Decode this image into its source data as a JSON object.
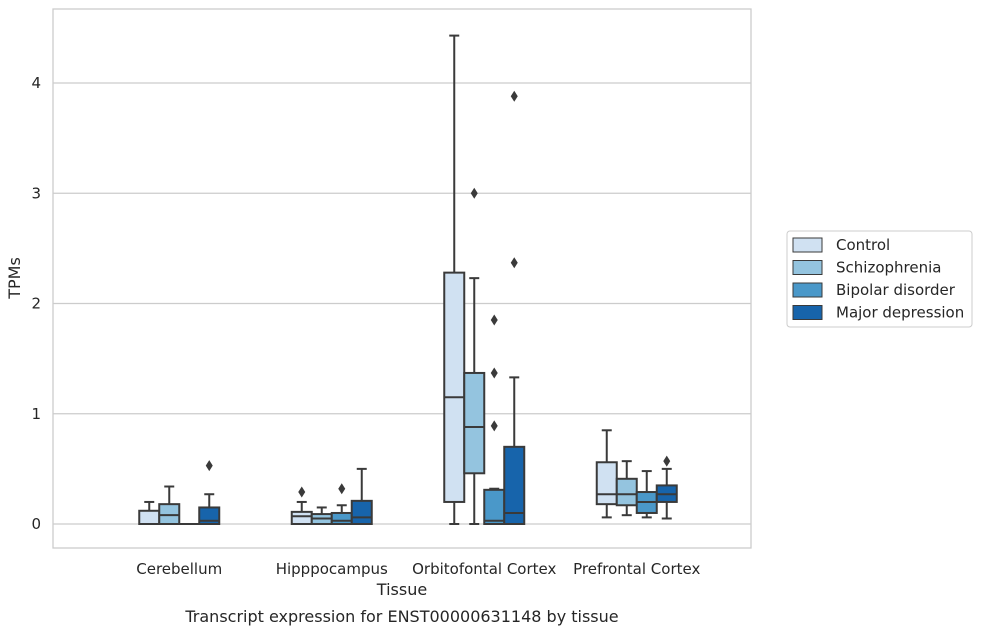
{
  "chart_data": {
    "type": "boxplot",
    "caption": "Transcript expression for ENST00000631148 by tissue",
    "xlabel": "Tissue",
    "ylabel": "TPMs",
    "ylim": [
      -0.22,
      4.7
    ],
    "yticks": [
      0,
      1,
      2,
      3,
      4
    ],
    "grid": true,
    "legend_position": "right",
    "categories": [
      "Cerebellum",
      "Hipppocampus",
      "Orbitofontal Cortex",
      "Prefrontal Cortex"
    ],
    "series": [
      {
        "name": "Control",
        "color": "#d0e1f2",
        "boxes": [
          {
            "whisker_low": 0,
            "q1": 0,
            "median": 0,
            "q3": 0.12,
            "whisker_high": 0.2,
            "outliers": []
          },
          {
            "whisker_low": 0,
            "q1": 0,
            "median": 0.07,
            "q3": 0.11,
            "whisker_high": 0.2,
            "outliers": [
              0.29
            ]
          },
          {
            "whisker_low": 0,
            "q1": 0.2,
            "median": 1.15,
            "q3": 2.28,
            "whisker_high": 4.43,
            "outliers": []
          },
          {
            "whisker_low": 0.06,
            "q1": 0.18,
            "median": 0.27,
            "q3": 0.56,
            "whisker_high": 0.85,
            "outliers": []
          }
        ]
      },
      {
        "name": "Schizophrenia",
        "color": "#94c4df",
        "boxes": [
          {
            "whisker_low": 0,
            "q1": 0,
            "median": 0.08,
            "q3": 0.18,
            "whisker_high": 0.34,
            "outliers": []
          },
          {
            "whisker_low": 0,
            "q1": 0,
            "median": 0.05,
            "q3": 0.09,
            "whisker_high": 0.15,
            "outliers": []
          },
          {
            "whisker_low": 0,
            "q1": 0.46,
            "median": 0.88,
            "q3": 1.37,
            "whisker_high": 2.23,
            "outliers": [
              3.0
            ]
          },
          {
            "whisker_low": 0.08,
            "q1": 0.17,
            "median": 0.27,
            "q3": 0.41,
            "whisker_high": 0.57,
            "outliers": []
          }
        ]
      },
      {
        "name": "Bipolar disorder",
        "color": "#4a98c9",
        "boxes": [
          {
            "whisker_low": 0,
            "q1": 0,
            "median": 0,
            "q3": 0,
            "whisker_high": 0,
            "outliers": []
          },
          {
            "whisker_low": 0,
            "q1": 0,
            "median": 0.03,
            "q3": 0.1,
            "whisker_high": 0.17,
            "outliers": [
              0.32
            ]
          },
          {
            "whisker_low": 0,
            "q1": 0,
            "median": 0.03,
            "q3": 0.31,
            "whisker_high": 0.32,
            "outliers": [
              0.89,
              1.37,
              1.85
            ]
          },
          {
            "whisker_low": 0.06,
            "q1": 0.1,
            "median": 0.2,
            "q3": 0.29,
            "whisker_high": 0.48,
            "outliers": []
          }
        ]
      },
      {
        "name": "Major depression",
        "color": "#1764ab",
        "boxes": [
          {
            "whisker_low": 0,
            "q1": 0,
            "median": 0.03,
            "q3": 0.15,
            "whisker_high": 0.27,
            "outliers": [
              0.53
            ]
          },
          {
            "whisker_low": 0,
            "q1": 0,
            "median": 0.06,
            "q3": 0.21,
            "whisker_high": 0.5,
            "outliers": []
          },
          {
            "whisker_low": 0,
            "q1": 0,
            "median": 0.1,
            "q3": 0.7,
            "whisker_high": 1.33,
            "outliers": [
              2.37,
              3.88
            ]
          },
          {
            "whisker_low": 0.05,
            "q1": 0.2,
            "median": 0.27,
            "q3": 0.35,
            "whisker_high": 0.5,
            "outliers": [
              0.57
            ]
          }
        ]
      }
    ]
  }
}
